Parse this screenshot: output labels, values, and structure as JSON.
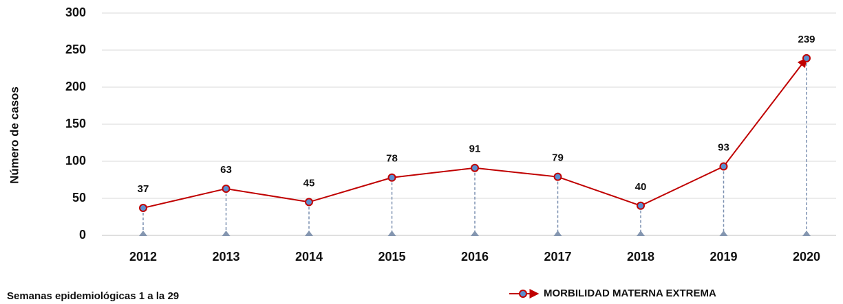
{
  "chart_data": {
    "type": "line",
    "y_label": "Número de casos",
    "x_label": "Semanas epidemiológicas 1 a la 29",
    "categories": [
      "2012",
      "2013",
      "2014",
      "2015",
      "2016",
      "2017",
      "2018",
      "2019",
      "2020"
    ],
    "series": [
      {
        "name": "MORBILIDAD MATERNA EXTREMA",
        "color": "#c00000",
        "marker_color": "#5b8fd0",
        "values": [
          37,
          63,
          45,
          78,
          91,
          79,
          40,
          93,
          239
        ]
      }
    ],
    "ylim": [
      0,
      300
    ],
    "yticks": [
      0,
      50,
      100,
      150,
      200,
      250,
      300
    ],
    "grid": true
  }
}
